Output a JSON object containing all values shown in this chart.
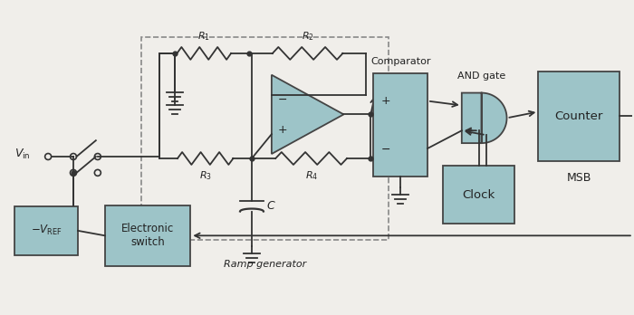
{
  "bg_color": "#f0eeea",
  "box_color": "#9dc4c8",
  "box_edge": "#444444",
  "line_color": "#333333",
  "text_color": "#222222",
  "fig_w": 7.0,
  "fig_h": 3.48,
  "labels": {
    "Vin": "$V_{\\mathrm{in}}$",
    "R1": "$R_1$",
    "R2": "$R_2$",
    "R3": "$R_3$",
    "R4": "$R_4$",
    "C": "$C$",
    "Comparator": "Comparator",
    "AND_gate": "AND gate",
    "Counter": "Counter",
    "MSB": "MSB",
    "Clock": "Clock",
    "Vref": "$-V_{\\mathrm{REF}}$",
    "Eswitch": "Electronic\nswitch",
    "Ramp": "Ramp generator"
  }
}
